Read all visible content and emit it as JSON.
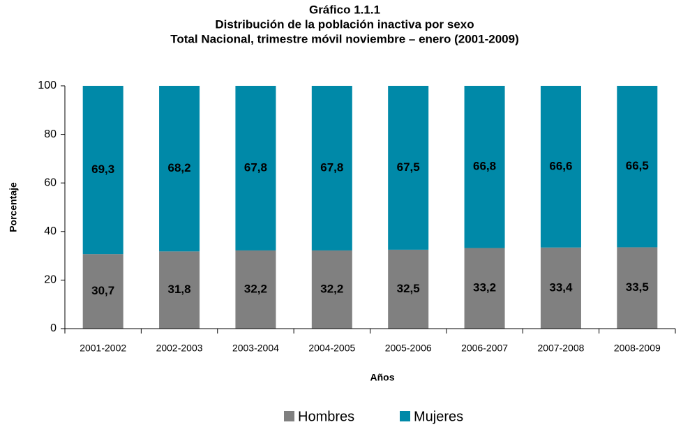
{
  "chart_data": {
    "type": "stacked_bar",
    "title": "Gráfico 1.1.1",
    "subtitle": [
      "Distribución de la población inactiva por sexo",
      "Total Nacional, trimestre móvil noviembre – enero (2001-2009)"
    ],
    "x_label": "Años",
    "y_label": "Porcentaje",
    "categories": [
      "2001-2002",
      "2002-2003",
      "2003-2004",
      "2004-2005",
      "2005-2006",
      "2006-2007",
      "2007-2008",
      "2008-2009"
    ],
    "series": [
      {
        "name": "Hombres",
        "color": "#808080",
        "values": [
          30.7,
          31.8,
          32.2,
          32.2,
          32.5,
          33.2,
          33.4,
          33.5
        ],
        "value_labels": [
          "30,7",
          "31,8",
          "32,2",
          "32,2",
          "32,5",
          "33,2",
          "33,4",
          "33,5"
        ]
      },
      {
        "name": "Mujeres",
        "color": "#0089a8",
        "values": [
          69.3,
          68.2,
          67.8,
          67.8,
          67.5,
          66.8,
          66.6,
          66.5
        ],
        "value_labels": [
          "69,3",
          "68,2",
          "67,8",
          "67,8",
          "67,5",
          "66,8",
          "66,6",
          "66,5"
        ]
      }
    ],
    "ylim": [
      0,
      100
    ],
    "yticks": [
      0,
      20,
      40,
      60,
      80,
      100
    ],
    "legend": "bottom"
  }
}
